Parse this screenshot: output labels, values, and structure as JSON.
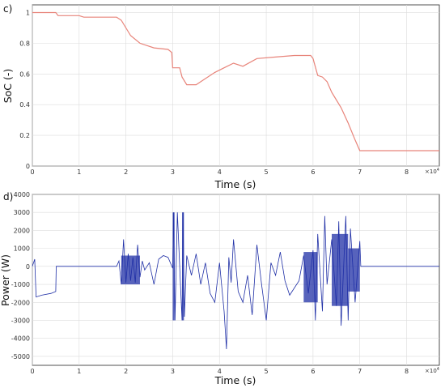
{
  "chart_data": [
    {
      "panel_label": "c)",
      "type": "line",
      "xlabel": "Time (s)",
      "ylabel": "SoC (-)",
      "x_exponent_label": "×10",
      "x_exponent_sup": "4",
      "xlim": [
        0,
        8.7
      ],
      "ylim": [
        0,
        1.05
      ],
      "x_ticks": [
        0,
        1,
        2,
        3,
        4,
        5,
        6,
        7,
        8
      ],
      "x_tick_labels": [
        "0",
        "1",
        "2",
        "3",
        "4",
        "5",
        "6",
        "7",
        "8"
      ],
      "y_ticks": [
        0,
        0.2,
        0.4,
        0.6,
        0.8,
        1
      ],
      "y_tick_labels": [
        "0",
        "0.2",
        "0.4",
        "0.6",
        "0.8",
        "1"
      ],
      "grid": true,
      "series_color": "#e8847a",
      "x": [
        0,
        0.5,
        0.55,
        1.0,
        1.1,
        1.8,
        1.9,
        2.1,
        2.3,
        2.6,
        2.9,
        2.98,
        3.0,
        3.15,
        3.2,
        3.3,
        3.5,
        3.7,
        3.9,
        4.1,
        4.3,
        4.5,
        4.8,
        5.2,
        5.6,
        5.95,
        6.0,
        6.1,
        6.2,
        6.3,
        6.4,
        6.5,
        6.6,
        6.75,
        6.9,
        7.0,
        8.7
      ],
      "y": [
        1.0,
        1.0,
        0.98,
        0.98,
        0.97,
        0.97,
        0.95,
        0.85,
        0.8,
        0.77,
        0.76,
        0.74,
        0.64,
        0.64,
        0.58,
        0.53,
        0.53,
        0.57,
        0.61,
        0.64,
        0.67,
        0.65,
        0.7,
        0.71,
        0.72,
        0.72,
        0.7,
        0.59,
        0.58,
        0.55,
        0.48,
        0.43,
        0.38,
        0.28,
        0.17,
        0.1,
        0.1
      ]
    },
    {
      "panel_label": "d)",
      "type": "line",
      "xlabel": "Time (s)",
      "ylabel": "Power (W)",
      "x_exponent_label": "×10",
      "x_exponent_sup": "4",
      "xlim": [
        0,
        8.7
      ],
      "ylim": [
        -5500,
        4000
      ],
      "x_ticks": [
        0,
        1,
        2,
        3,
        4,
        5,
        6,
        7,
        8
      ],
      "x_tick_labels": [
        "0",
        "1",
        "2",
        "3",
        "4",
        "5",
        "6",
        "7",
        "8"
      ],
      "y_ticks": [
        -5000,
        -4000,
        -3000,
        -2000,
        -1000,
        0,
        1000,
        2000,
        3000,
        4000
      ],
      "y_tick_labels": [
        "-5000",
        "-4000",
        "-3000",
        "-2000",
        "-1000",
        "0",
        "1000",
        "2000",
        "3000",
        "4000"
      ],
      "grid": true,
      "series_color": "#1f2fa6",
      "x": [
        0,
        0.05,
        0.08,
        0.2,
        0.4,
        0.5,
        0.51,
        0.52,
        1.8,
        1.85,
        1.9,
        1.95,
        2.0,
        2.05,
        2.1,
        2.15,
        2.2,
        2.25,
        2.3,
        2.35,
        2.4,
        2.5,
        2.6,
        2.7,
        2.8,
        2.9,
        3.0,
        3.02,
        3.05,
        3.1,
        3.2,
        3.22,
        3.25,
        3.3,
        3.4,
        3.5,
        3.6,
        3.7,
        3.8,
        3.9,
        4.0,
        4.1,
        4.15,
        4.2,
        4.25,
        4.3,
        4.4,
        4.5,
        4.6,
        4.7,
        4.8,
        4.9,
        5.0,
        5.1,
        5.2,
        5.3,
        5.4,
        5.5,
        5.6,
        5.7,
        5.8,
        5.9,
        6.0,
        6.05,
        6.1,
        6.2,
        6.25,
        6.3,
        6.4,
        6.5,
        6.55,
        6.6,
        6.7,
        6.75,
        6.8,
        6.9,
        7.0,
        7.02,
        8.7
      ],
      "y": [
        0,
        400,
        -1700,
        -1600,
        -1500,
        -1400,
        0,
        0,
        0,
        300,
        -1000,
        1500,
        -900,
        700,
        -800,
        500,
        -900,
        1200,
        -600,
        300,
        -200,
        200,
        -1000,
        400,
        600,
        500,
        -100,
        3000,
        -3000,
        3000,
        -3000,
        3000,
        -2800,
        600,
        -500,
        700,
        -1000,
        200,
        -1500,
        -2000,
        200,
        -2500,
        -4600,
        500,
        -900,
        1500,
        -1400,
        -2000,
        -500,
        -2700,
        1200,
        -1000,
        -3000,
        200,
        -500,
        800,
        -800,
        -1600,
        -1200,
        -800,
        600,
        -1500,
        900,
        -3000,
        1800,
        -2500,
        2800,
        -1000,
        1500,
        -2200,
        2500,
        -3300,
        2800,
        -3000,
        2100,
        -2000,
        1400,
        0,
        0
      ],
      "dense_bands": [
        {
          "x_from": 1.9,
          "x_to": 2.3,
          "y_top": 600,
          "y_bottom": -1000
        },
        {
          "x_from": 3.0,
          "x_to": 3.04,
          "y_top": 3000,
          "y_bottom": -3000
        },
        {
          "x_from": 3.2,
          "x_to": 3.24,
          "y_top": 3000,
          "y_bottom": -3000
        },
        {
          "x_from": 5.8,
          "x_to": 6.1,
          "y_top": 800,
          "y_bottom": -2000
        },
        {
          "x_from": 6.4,
          "x_to": 6.75,
          "y_top": 1800,
          "y_bottom": -2200
        },
        {
          "x_from": 6.75,
          "x_to": 7.0,
          "y_top": 1000,
          "y_bottom": -1400
        }
      ]
    }
  ]
}
